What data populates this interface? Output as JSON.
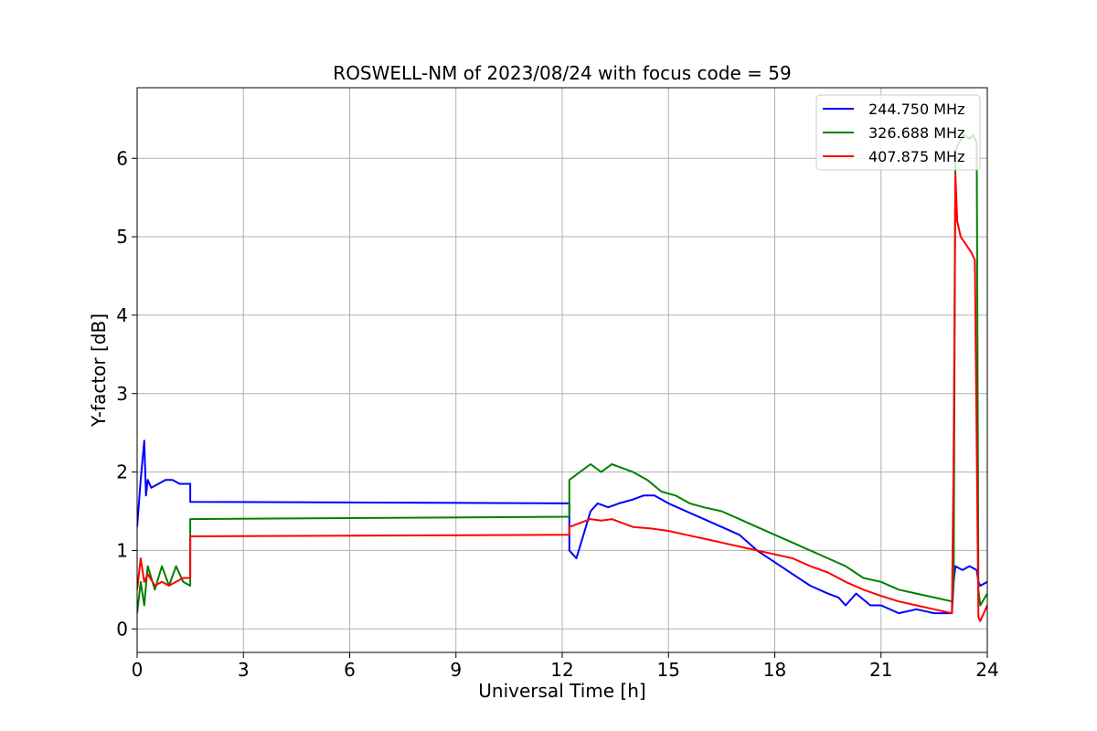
{
  "chart_data": {
    "type": "line",
    "title": "ROSWELL-NM of 2023/08/24 with focus code = 59",
    "xlabel": "Universal Time [h]",
    "ylabel": "Y-factor [dB]",
    "xlim": [
      0,
      24
    ],
    "ylim": [
      -0.3,
      6.9
    ],
    "xticks": [
      0,
      3,
      6,
      9,
      12,
      15,
      18,
      21,
      24
    ],
    "yticks": [
      0,
      1,
      2,
      3,
      4,
      5,
      6
    ],
    "grid": true,
    "legend_position": "top-right",
    "series": [
      {
        "name": "244.750 MHz",
        "color": "#0000ff",
        "x": [
          0.0,
          0.1,
          0.2,
          0.25,
          0.3,
          0.4,
          0.6,
          0.8,
          1.0,
          1.2,
          1.5,
          1.5,
          12.2,
          12.2,
          12.4,
          12.6,
          12.8,
          13.0,
          13.3,
          13.6,
          14.0,
          14.3,
          14.6,
          15.0,
          15.5,
          16.0,
          16.5,
          17.0,
          17.5,
          18.0,
          18.5,
          19.0,
          19.5,
          19.8,
          20.0,
          20.3,
          20.7,
          21.0,
          21.5,
          22.0,
          22.5,
          23.0,
          23.05,
          23.1,
          23.3,
          23.5,
          23.7,
          23.75,
          23.8,
          24.0
        ],
        "y": [
          1.3,
          1.9,
          2.4,
          1.7,
          1.9,
          1.8,
          1.85,
          1.9,
          1.9,
          1.85,
          1.85,
          1.62,
          1.6,
          1.0,
          0.9,
          1.2,
          1.5,
          1.6,
          1.55,
          1.6,
          1.65,
          1.7,
          1.7,
          1.6,
          1.5,
          1.4,
          1.3,
          1.2,
          1.0,
          0.85,
          0.7,
          0.55,
          0.45,
          0.4,
          0.3,
          0.45,
          0.3,
          0.3,
          0.2,
          0.25,
          0.2,
          0.2,
          0.6,
          0.8,
          0.75,
          0.8,
          0.75,
          0.6,
          0.55,
          0.6
        ]
      },
      {
        "name": "326.688 MHz",
        "color": "#008000",
        "x": [
          0.0,
          0.1,
          0.2,
          0.3,
          0.5,
          0.7,
          0.9,
          1.1,
          1.3,
          1.5,
          1.5,
          12.2,
          12.2,
          12.5,
          12.8,
          13.1,
          13.4,
          13.7,
          14.0,
          14.4,
          14.8,
          15.2,
          15.6,
          16.0,
          16.5,
          17.0,
          17.5,
          18.0,
          18.5,
          19.0,
          19.5,
          20.0,
          20.5,
          21.0,
          21.5,
          22.0,
          22.5,
          23.0,
          23.05,
          23.1,
          23.2,
          23.35,
          23.5,
          23.6,
          23.7,
          23.75,
          23.8,
          24.0
        ],
        "y": [
          0.2,
          0.6,
          0.3,
          0.8,
          0.5,
          0.8,
          0.55,
          0.8,
          0.6,
          0.55,
          1.4,
          1.43,
          1.9,
          2.0,
          2.1,
          2.0,
          2.1,
          2.05,
          2.0,
          1.9,
          1.75,
          1.7,
          1.6,
          1.55,
          1.5,
          1.4,
          1.3,
          1.2,
          1.1,
          1.0,
          0.9,
          0.8,
          0.65,
          0.6,
          0.5,
          0.45,
          0.4,
          0.35,
          0.6,
          6.1,
          6.2,
          6.3,
          6.25,
          6.3,
          6.2,
          0.5,
          0.3,
          0.45
        ]
      },
      {
        "name": "407.875 MHz",
        "color": "#ff0000",
        "x": [
          0.0,
          0.1,
          0.2,
          0.3,
          0.5,
          0.7,
          0.9,
          1.1,
          1.3,
          1.5,
          1.5,
          12.2,
          12.2,
          12.5,
          12.8,
          13.1,
          13.4,
          13.7,
          14.0,
          14.5,
          15.0,
          15.5,
          16.0,
          16.5,
          17.0,
          17.5,
          18.0,
          18.5,
          19.0,
          19.5,
          20.0,
          20.5,
          21.0,
          21.5,
          22.0,
          22.5,
          23.0,
          23.05,
          23.1,
          23.15,
          23.25,
          23.4,
          23.55,
          23.65,
          23.75,
          23.8,
          24.0
        ],
        "y": [
          0.5,
          0.9,
          0.6,
          0.7,
          0.55,
          0.6,
          0.55,
          0.6,
          0.65,
          0.65,
          1.18,
          1.2,
          1.3,
          1.35,
          1.4,
          1.38,
          1.4,
          1.35,
          1.3,
          1.28,
          1.25,
          1.2,
          1.15,
          1.1,
          1.05,
          1.0,
          0.95,
          0.9,
          0.8,
          0.72,
          0.6,
          0.5,
          0.42,
          0.35,
          0.3,
          0.25,
          0.2,
          2.2,
          5.8,
          5.2,
          5.0,
          4.9,
          4.8,
          4.7,
          0.15,
          0.1,
          0.3
        ]
      }
    ]
  }
}
